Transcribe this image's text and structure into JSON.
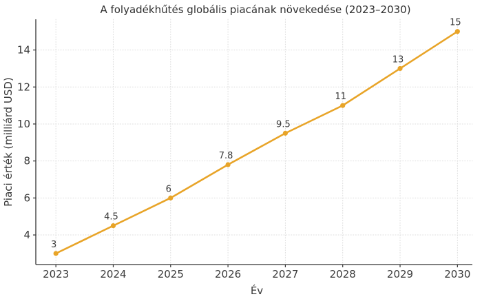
{
  "chart_data": {
    "type": "line",
    "title": "A folyadékhűtés globális piacának növekedése (2023–2030)",
    "xlabel": "Év",
    "ylabel": "Piaci érték (milliárd USD)",
    "x": [
      2023,
      2024,
      2025,
      2026,
      2027,
      2028,
      2029,
      2030
    ],
    "series": [
      {
        "name": "Piaci érték",
        "values": [
          3,
          4.5,
          6,
          7.8,
          9.5,
          11,
          13,
          15
        ],
        "point_labels": [
          "3",
          "4.5",
          "6",
          "7.8",
          "9.5",
          "11",
          "13",
          "15"
        ]
      }
    ],
    "xtick_labels": [
      "2023",
      "2024",
      "2025",
      "2026",
      "2027",
      "2028",
      "2029",
      "2030"
    ],
    "ytick_values": [
      4,
      6,
      8,
      10,
      12,
      14
    ],
    "ytick_labels": [
      "4",
      "6",
      "8",
      "10",
      "12",
      "14"
    ],
    "xlim": [
      2022.65,
      2030.26
    ],
    "ylim": [
      2.4,
      15.66
    ],
    "grid": true,
    "grid_style": "dotted",
    "legend": "none",
    "colors": {
      "line": "#E8A428",
      "marker": "#E8A428",
      "grid": "#DCDCDC",
      "axis": "#333333",
      "text": "#3A3A3A",
      "background": "#FFFFFF"
    }
  }
}
